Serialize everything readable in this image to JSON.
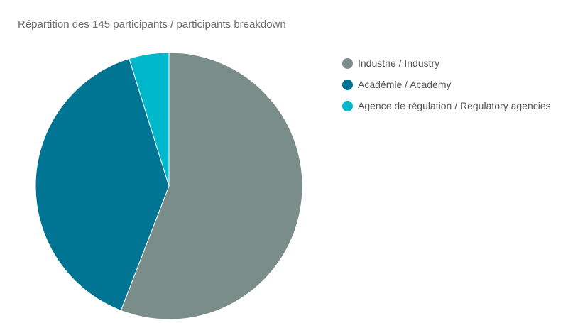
{
  "chart_data": {
    "type": "pie",
    "title": "Répartition des 145 participants / participants breakdown",
    "categories": [
      "Industrie / Industry",
      "Académie / Academy",
      "Agence de régulation / Regulatory agencies"
    ],
    "values": [
      81,
      57,
      7
    ],
    "colors": [
      "#7a8d89",
      "#007593",
      "#00b8cc"
    ],
    "legend_position": "right"
  }
}
